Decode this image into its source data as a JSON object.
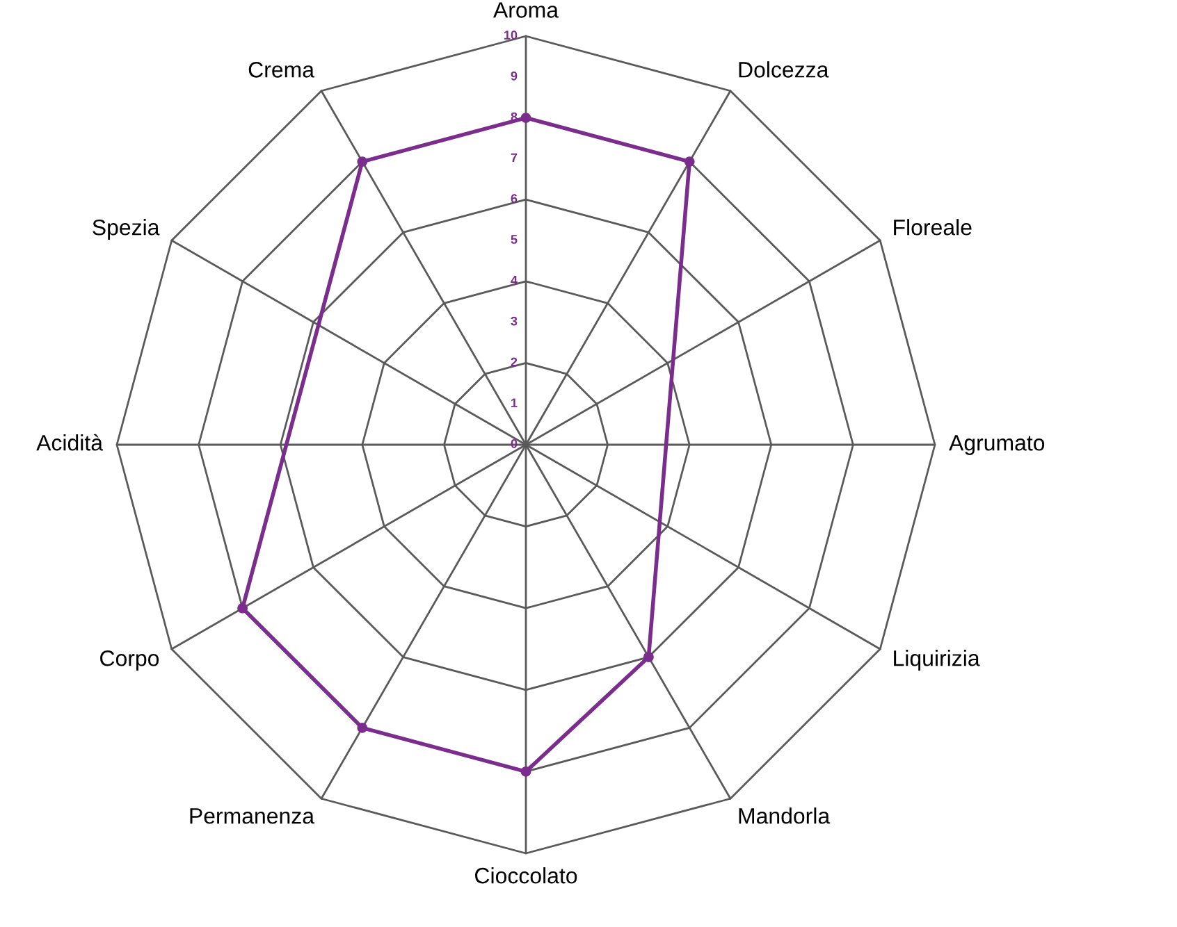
{
  "chart_data": {
    "type": "radar",
    "categories": [
      "Aroma",
      "Dolcezza",
      "Floreale",
      "Agrumato",
      "Liquirizia",
      "Mandorla",
      "Cioccolato",
      "Permanenza",
      "Corpo",
      "Acidità",
      "Spezia",
      "Crema"
    ],
    "series": [
      {
        "color": "#7b2d8e",
        "values": [
          8,
          8,
          null,
          null,
          null,
          6,
          8,
          8,
          8,
          null,
          null,
          8
        ]
      }
    ],
    "ylim": [
      0,
      10
    ],
    "yticks": [
      0,
      1,
      2,
      3,
      4,
      5,
      6,
      7,
      8,
      9,
      10
    ],
    "grid": true,
    "marker": "circle",
    "line_style": "solid"
  }
}
